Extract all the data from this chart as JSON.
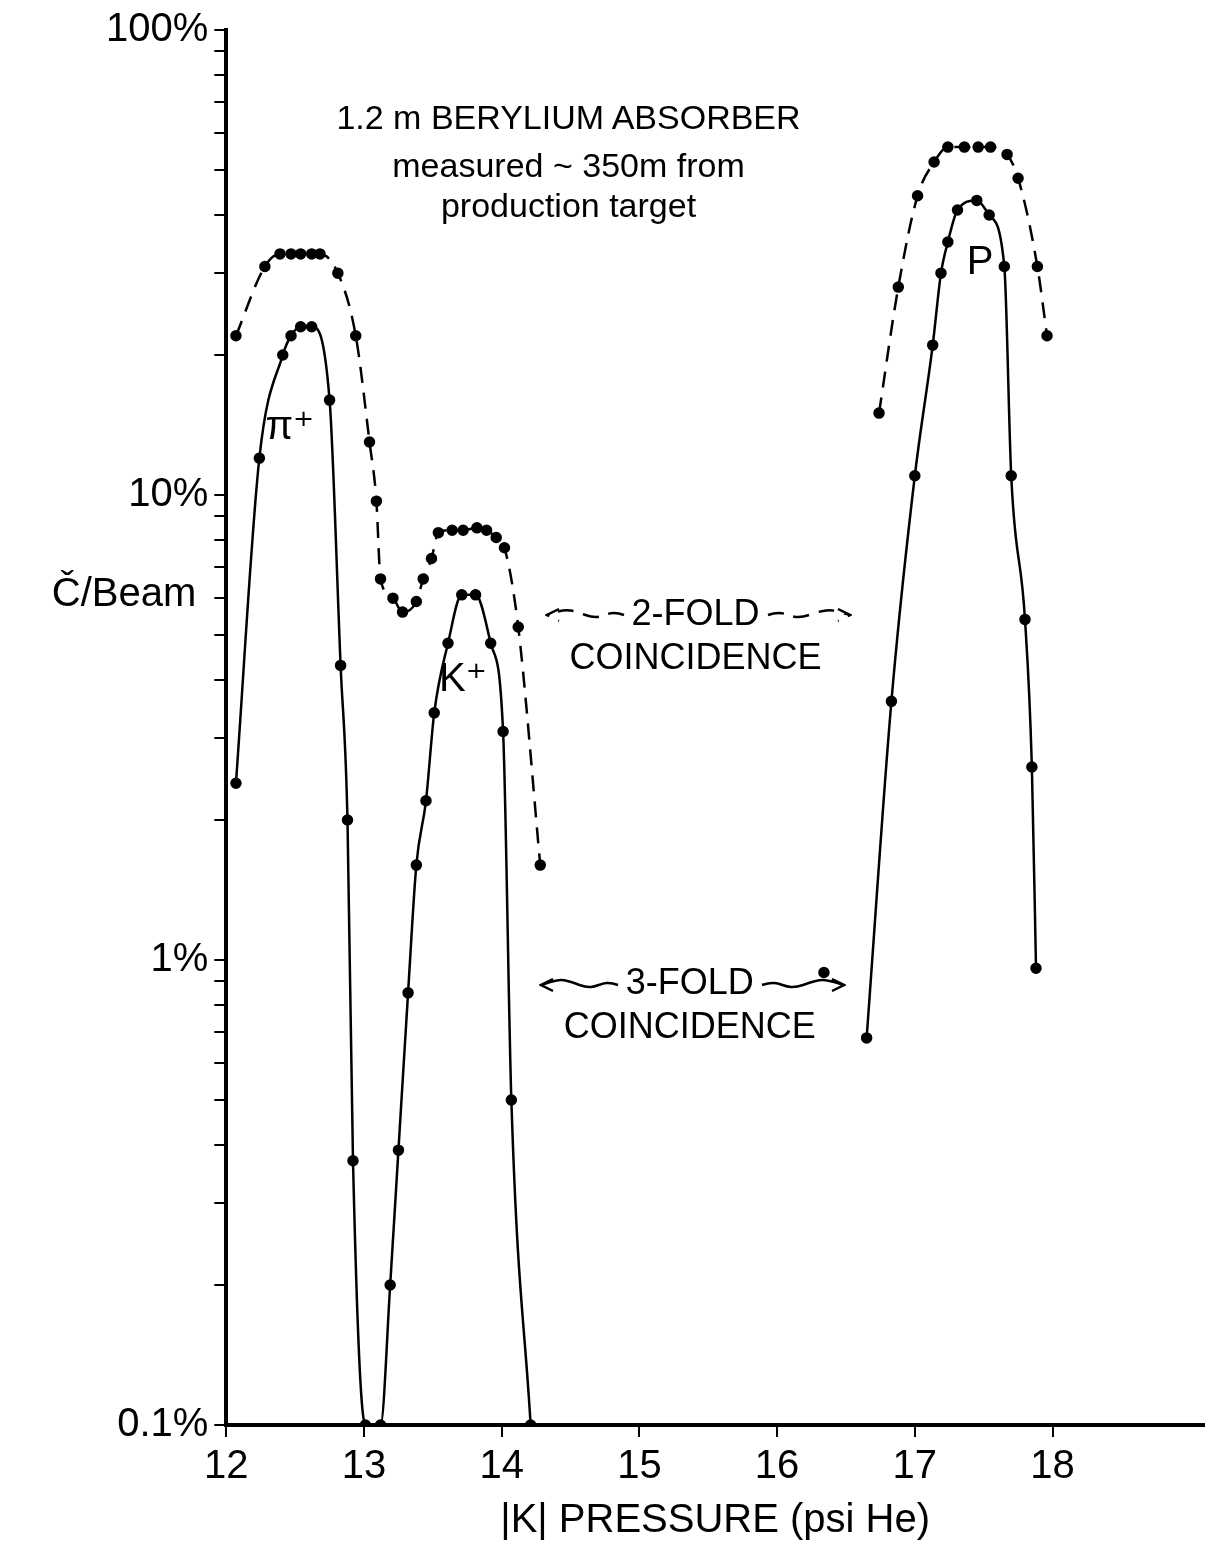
{
  "chart_data": {
    "type": "line",
    "title": "1.2 m BERYLIUM ABSORBER",
    "subtitle": "measured ~ 350m from production target",
    "xlabel": "|K| PRESSURE (psi He)",
    "ylabel": "Č/Beam",
    "log": "y",
    "marker": "circle",
    "legend": "center",
    "xlim": [
      12,
      19.1
    ],
    "xticks": [
      12,
      13,
      14,
      15,
      16,
      17,
      18
    ],
    "ylim": [
      0.1,
      100
    ],
    "yticks": [
      {
        "value": 0.1,
        "label": "0.1%"
      },
      {
        "value": 0.2,
        "label": null
      },
      {
        "value": 0.3,
        "label": null
      },
      {
        "value": 0.4,
        "label": null
      },
      {
        "value": 0.5,
        "label": null
      },
      {
        "value": 0.6,
        "label": null
      },
      {
        "value": 0.7,
        "label": null
      },
      {
        "value": 0.8,
        "label": null
      },
      {
        "value": 0.9,
        "label": null
      },
      {
        "value": 1,
        "label": "1%"
      },
      {
        "value": 2,
        "label": null
      },
      {
        "value": 3,
        "label": null
      },
      {
        "value": 4,
        "label": null
      },
      {
        "value": 5,
        "label": null
      },
      {
        "value": 6,
        "label": null
      },
      {
        "value": 7,
        "label": null
      },
      {
        "value": 8,
        "label": null
      },
      {
        "value": 9,
        "label": null
      },
      {
        "value": 10,
        "label": "10%"
      },
      {
        "value": 20,
        "label": null
      },
      {
        "value": 30,
        "label": null
      },
      {
        "value": 40,
        "label": null
      },
      {
        "value": 50,
        "label": null
      },
      {
        "value": 60,
        "label": null
      },
      {
        "value": 70,
        "label": null
      },
      {
        "value": 80,
        "label": null
      },
      {
        "value": 90,
        "label": null
      },
      {
        "value": 100,
        "label": "100%"
      }
    ],
    "series": [
      {
        "name": "2-FOLD COINCIDENCE",
        "color": "#000000",
        "line_style": "dashed",
        "x": [
          12.07,
          12.28,
          12.39,
          12.47,
          12.54,
          12.62,
          12.68,
          12.81,
          12.94,
          13.04,
          13.09,
          13.12,
          13.21,
          13.28,
          13.38,
          13.43,
          13.49,
          13.54,
          13.64,
          13.72,
          13.82,
          13.89,
          13.96,
          14.02,
          14.12,
          14.28,
          15.3,
          16.34,
          16.5,
          16.74,
          16.88,
          17.02,
          17.14,
          17.24,
          17.36,
          17.46,
          17.55,
          17.67,
          17.75,
          17.89,
          17.96
        ],
        "values": [
          22,
          31,
          33,
          33,
          33,
          33,
          33,
          30,
          22,
          13,
          9.7,
          6.6,
          6,
          5.6,
          5.9,
          6.6,
          7.3,
          8.3,
          8.4,
          8.4,
          8.5,
          8.4,
          8.1,
          7.7,
          5.2,
          1.6,
          null,
          0.94,
          null,
          15,
          28,
          44,
          52,
          56,
          56,
          56,
          56,
          54,
          48,
          31,
          22
        ]
      },
      {
        "name": "3-FOLD COINCIDENCE",
        "color": "#000000",
        "line_style": "solid",
        "x": [
          12.07,
          12.24,
          12.41,
          12.47,
          12.54,
          12.62,
          12.75,
          12.83,
          12.88,
          12.92,
          13.01,
          13.12,
          13.19,
          13.25,
          13.32,
          13.38,
          13.45,
          13.51,
          13.61,
          13.71,
          13.81,
          13.92,
          14.01,
          14.07,
          14.21,
          15.4,
          16.65,
          16.83,
          17.0,
          17.13,
          17.19,
          17.24,
          17.31,
          17.45,
          17.54,
          17.65,
          17.7,
          17.8,
          17.85,
          17.88
        ],
        "values": [
          2.4,
          12,
          20,
          22,
          23,
          23,
          16,
          4.3,
          2,
          0.37,
          0.1,
          0.1,
          0.2,
          0.39,
          0.85,
          1.6,
          2.2,
          3.4,
          4.8,
          6.1,
          6.1,
          4.8,
          3.1,
          0.5,
          0.1,
          null,
          0.68,
          3.6,
          11,
          21,
          30,
          35,
          41,
          43,
          40,
          31,
          11,
          5.4,
          2.6,
          0.96
        ]
      }
    ],
    "annotations": [
      "π⁺",
      "K⁺",
      "P"
    ]
  }
}
